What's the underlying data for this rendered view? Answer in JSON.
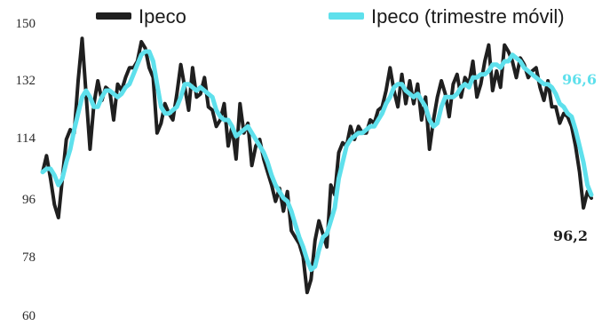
{
  "chart_data": {
    "type": "line",
    "title": "",
    "xlabel": "",
    "ylabel": "",
    "ylim": [
      60,
      150
    ],
    "yticks": [
      "150",
      "132",
      "114",
      "96",
      "78",
      "60"
    ],
    "legend_position": "top",
    "series": [
      {
        "name": "Ipeco",
        "color": "#1f1f1f",
        "end_label": "96,2",
        "values": [
          104,
          109,
          102,
          94,
          90,
          102,
          114,
          117,
          116,
          132,
          145,
          128,
          111,
          125,
          132,
          126,
          130,
          129,
          120,
          131,
          129,
          133,
          136,
          136,
          138,
          144,
          142,
          136,
          133,
          116,
          119,
          125,
          122,
          120,
          128,
          137,
          130,
          123,
          136,
          127,
          128,
          133,
          124,
          123,
          118,
          120,
          125,
          112,
          118,
          108,
          125,
          116,
          119,
          106,
          112,
          114,
          108,
          104,
          100,
          95,
          99,
          92,
          98,
          86,
          84,
          82,
          78,
          67,
          71,
          83,
          89,
          85,
          81,
          100,
          97,
          110,
          113,
          112,
          118,
          114,
          118,
          116,
          116,
          120,
          119,
          123,
          124,
          129,
          136,
          129,
          124,
          134,
          125,
          132,
          125,
          131,
          120,
          127,
          111,
          120,
          127,
          132,
          128,
          121,
          131,
          134,
          127,
          133,
          131,
          138,
          127,
          131,
          138,
          143,
          129,
          135,
          130,
          143,
          141,
          138,
          133,
          139,
          137,
          133,
          135,
          136,
          130,
          126,
          132,
          124,
          124,
          119,
          122,
          121,
          118,
          112,
          104,
          93,
          98,
          96
        ]
      },
      {
        "name": "Ipeco (trimestre móvil)",
        "color": "#5ee0ec",
        "end_label": "96,6",
        "values": [
          104,
          105,
          105,
          103,
          100,
          102,
          107,
          111,
          117,
          122,
          127,
          129,
          127,
          124,
          124,
          127,
          129,
          129,
          128,
          127,
          128,
          130,
          131,
          134,
          137,
          140,
          141,
          141,
          138,
          131,
          124,
          122,
          122,
          123,
          124,
          127,
          131,
          131,
          130,
          129,
          130,
          129,
          128,
          127,
          123,
          121,
          120,
          120,
          118,
          115,
          116,
          117,
          118,
          116,
          114,
          112,
          110,
          107,
          103,
          100,
          98,
          96,
          95,
          92,
          88,
          84,
          81,
          77,
          74,
          75,
          80,
          84,
          85,
          89,
          93,
          102,
          107,
          112,
          114,
          115,
          116,
          116,
          117,
          118,
          118,
          120,
          122,
          125,
          127,
          130,
          131,
          131,
          129,
          128,
          127,
          128,
          126,
          124,
          120,
          118,
          119,
          124,
          127,
          127,
          127,
          128,
          130,
          131,
          130,
          133,
          133,
          134,
          134,
          135,
          137,
          137,
          136,
          138,
          138,
          140,
          139,
          138,
          136,
          135,
          134,
          133,
          132,
          131,
          131,
          130,
          128,
          125,
          124,
          122,
          121,
          117,
          112,
          107,
          100,
          97
        ]
      }
    ]
  }
}
